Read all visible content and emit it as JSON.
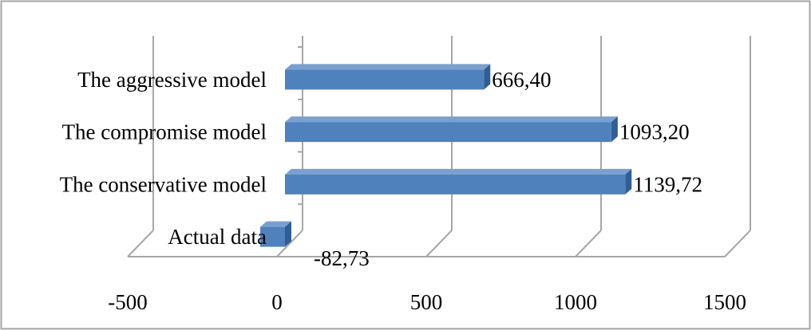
{
  "chart_data": {
    "type": "bar",
    "orientation": "horizontal",
    "style": "3d",
    "categories": [
      "Actual data",
      "The conservative model",
      "The compromise model",
      "The aggressive model"
    ],
    "values": [
      -82.73,
      1139.72,
      1093.2,
      666.4
    ],
    "data_labels": [
      "-82,73",
      "1139,72",
      "1093,20",
      "666,40"
    ],
    "x_ticks": [
      "-500",
      "0",
      "500",
      "1000",
      "1500"
    ],
    "xlim": [
      -500,
      1500
    ],
    "title": "",
    "xlabel": "",
    "ylabel": "",
    "grid": "vertical",
    "legend": "none",
    "colors": {
      "bar_front": "#4f81bd",
      "bar_top": "#7aa0d1",
      "bar_side": "#2f5d94",
      "grid": "#a6a6a6",
      "frame": "#a6a6a6",
      "text": "#000000"
    }
  }
}
